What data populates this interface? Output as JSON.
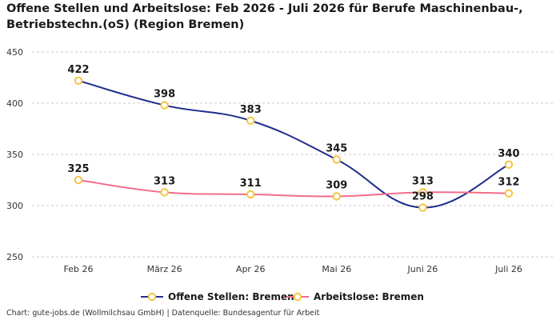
{
  "title": "Offene Stellen und Arbeitslose: Feb 2026 - Juli 2026 für Berufe Maschinenbau-, Betriebstechn.(oS) (Region Bremen)",
  "footer": "Chart: gute-jobs.de (Wollmilchsau GmbH) | Datenquelle: Bundesagentur für Arbeit",
  "chart_data": {
    "type": "line",
    "categories": [
      "Feb 26",
      "März 26",
      "Apr 26",
      "Mai 26",
      "Juni 26",
      "Juli 26"
    ],
    "series": [
      {
        "name": "Offene Stellen: Bremen",
        "values": [
          422,
          398,
          383,
          345,
          298,
          340
        ],
        "color": "#1f2d8c"
      },
      {
        "name": "Arbeitslose: Bremen",
        "values": [
          325,
          313,
          311,
          309,
          313,
          312
        ],
        "color": "#f26d8a"
      }
    ],
    "marker_color": "#f5c542",
    "ylim": [
      250,
      450
    ],
    "yticks": [
      250,
      300,
      350,
      400,
      450
    ],
    "grid": true,
    "legend_position": "bottom-center"
  }
}
